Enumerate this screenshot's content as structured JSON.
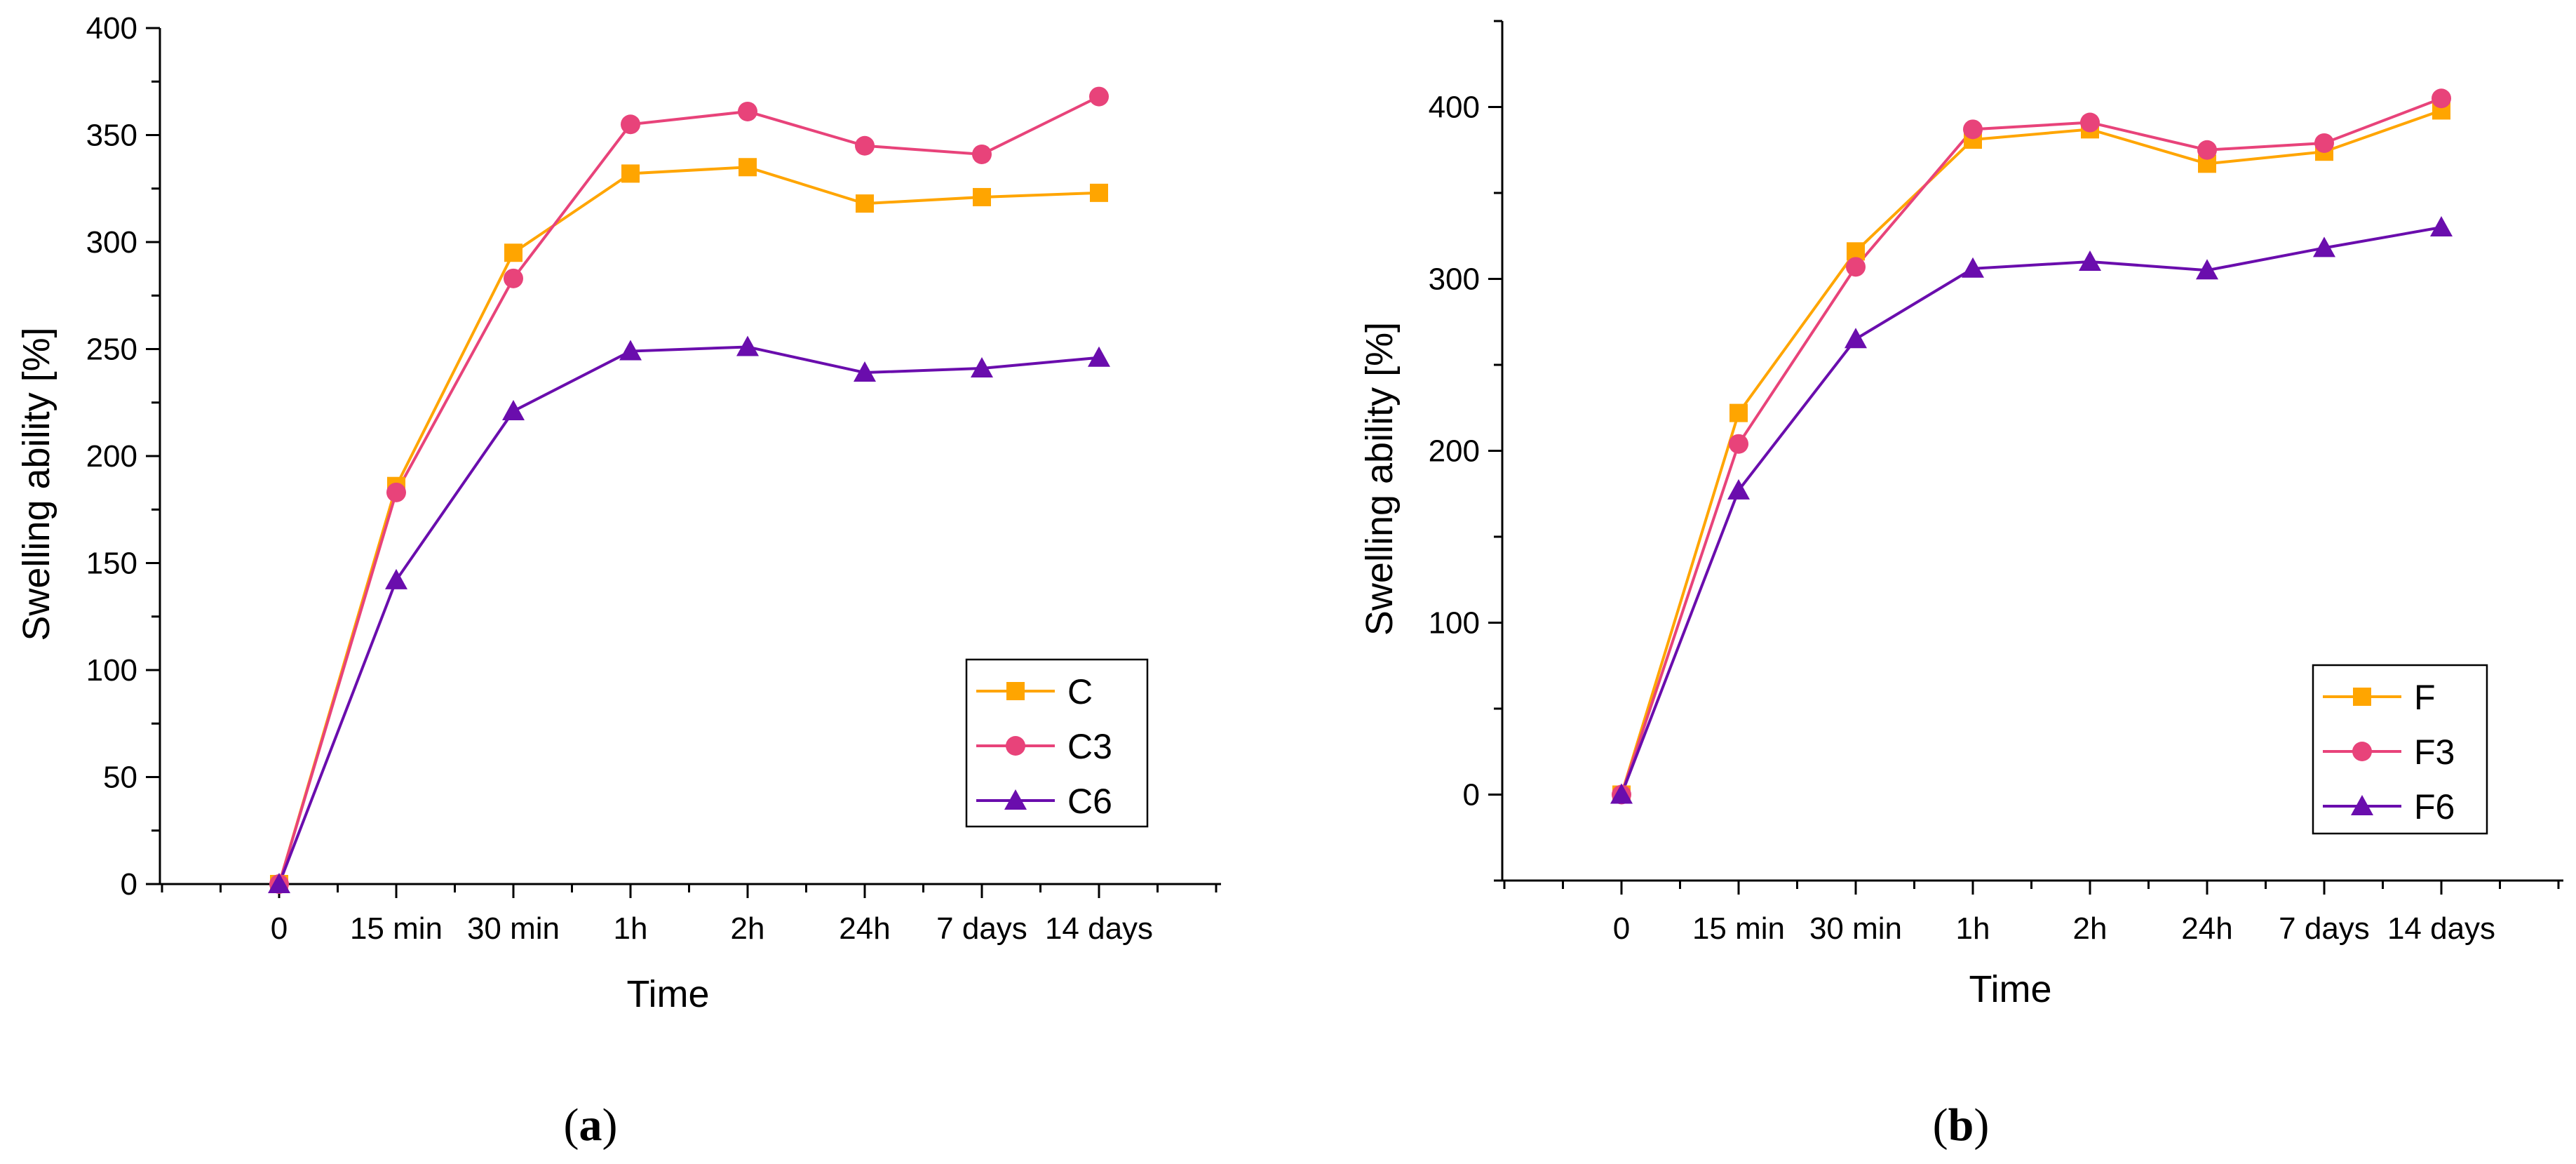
{
  "colors": {
    "orange": "#FFA500",
    "pink": "#E8437A",
    "purple": "#6A0DAD",
    "axis": "#000000"
  },
  "chart_data": [
    {
      "type": "line",
      "panel": "(a)",
      "panel_prefix": "(",
      "panel_letter": "a",
      "panel_suffix": ")",
      "xlabel": "Time",
      "ylabel": "Swelling ability [%]",
      "categories": [
        "0",
        "15 min",
        "30 min",
        "1h",
        "2h",
        "24h",
        "7 days",
        "14 days"
      ],
      "ylim": [
        0,
        400
      ],
      "yticks": [
        0,
        50,
        100,
        150,
        200,
        250,
        300,
        350,
        400
      ],
      "legend_position": "bottom-right",
      "series": [
        {
          "name": "C",
          "marker": "square",
          "color": "#FFA500",
          "values": [
            0,
            186,
            295,
            332,
            335,
            318,
            321,
            323
          ]
        },
        {
          "name": "C3",
          "marker": "circle",
          "color": "#E8437A",
          "values": [
            0,
            183,
            283,
            355,
            361,
            345,
            341,
            368
          ]
        },
        {
          "name": "C6",
          "marker": "triangle",
          "color": "#6A0DAD",
          "values": [
            0,
            142,
            221,
            249,
            251,
            239,
            241,
            246
          ]
        }
      ]
    },
    {
      "type": "line",
      "panel": "(b)",
      "panel_prefix": "(",
      "panel_letter": "b",
      "panel_suffix": ")",
      "xlabel": "Time",
      "ylabel": "Swelling ability [%]",
      "categories": [
        "0",
        "15 min",
        "30 min",
        "1h",
        "2h",
        "24h",
        "7 days",
        "14 days"
      ],
      "ylim": [
        -50,
        450
      ],
      "yticks": [
        0,
        100,
        200,
        300,
        400
      ],
      "legend_position": "bottom-right",
      "series": [
        {
          "name": "F",
          "marker": "square",
          "color": "#FFA500",
          "values": [
            0,
            222,
            316,
            381,
            387,
            367,
            374,
            398
          ]
        },
        {
          "name": "F3",
          "marker": "circle",
          "color": "#E8437A",
          "values": [
            0,
            204,
            307,
            387,
            391,
            375,
            379,
            405
          ]
        },
        {
          "name": "F6",
          "marker": "triangle",
          "color": "#6A0DAD",
          "values": [
            0,
            177,
            265,
            306,
            310,
            305,
            318,
            330
          ]
        }
      ]
    }
  ]
}
